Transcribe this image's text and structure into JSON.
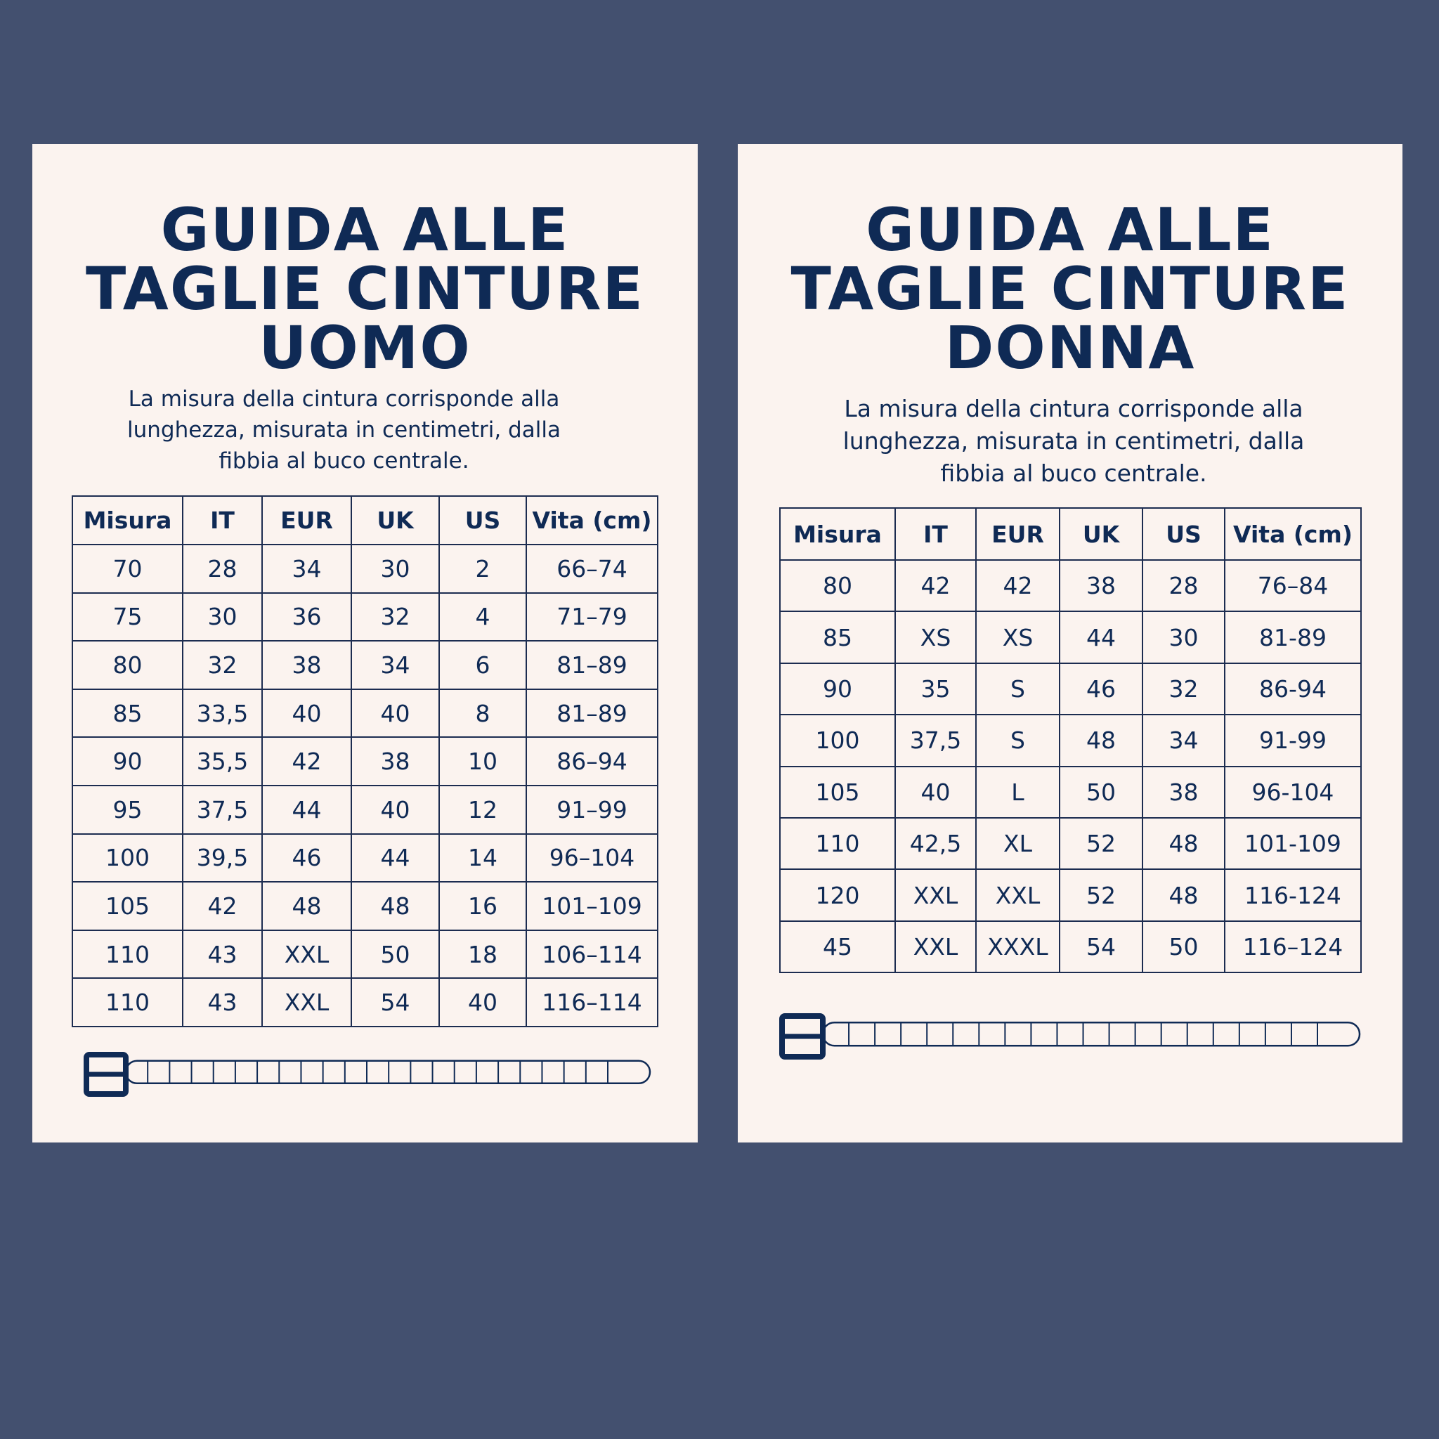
{
  "colors": {
    "background": "#43506F",
    "card": "#FBF3EF",
    "ink": "#0F2A55"
  },
  "men": {
    "title_lines": [
      "GUIDA ALLE",
      "TAGLIE CINTURE",
      "UOMO"
    ],
    "subtitle_lines": [
      "La misura della cintura corrisponde alla",
      "lunghezza, misurata in centimetri, dalla",
      "fibbia al buco centrale."
    ],
    "headers": [
      "Misura",
      "IT",
      "EUR",
      "UK",
      "US",
      "Vita (cm)"
    ],
    "rows": [
      [
        "70",
        "28",
        "34",
        "30",
        "2",
        "66–74"
      ],
      [
        "75",
        "30",
        "36",
        "32",
        "4",
        "71–79"
      ],
      [
        "80",
        "32",
        "38",
        "34",
        "6",
        "81–89"
      ],
      [
        "85",
        "33,5",
        "40",
        "40",
        "8",
        "81–89"
      ],
      [
        "90",
        "35,5",
        "42",
        "38",
        "10",
        "86–94"
      ],
      [
        "95",
        "37,5",
        "44",
        "40",
        "12",
        "91–99"
      ],
      [
        "100",
        "39,5",
        "46",
        "44",
        "14",
        "96–104"
      ],
      [
        "105",
        "42",
        "48",
        "48",
        "16",
        "101–109"
      ],
      [
        "110",
        "43",
        "XXL",
        "50",
        "18",
        "106–114"
      ],
      [
        "110",
        "43",
        "XXL",
        "54",
        "40",
        "116–114"
      ]
    ],
    "belt_icon": "belt-icon"
  },
  "women": {
    "title_lines": [
      "GUIDA ALLE",
      "TAGLIE CINTURE",
      "DONNA"
    ],
    "subtitle_lines": [
      "La misura della cintura corrisponde alla",
      "lunghezza, misurata in centimetri, dalla",
      "fibbia al buco centrale."
    ],
    "headers": [
      "Misura",
      "IT",
      "EUR",
      "UK",
      "US",
      "Vita (cm)"
    ],
    "rows": [
      [
        "80",
        "42",
        "42",
        "38",
        "28",
        "76–84"
      ],
      [
        "85",
        "XS",
        "XS",
        "44",
        "30",
        "81-89"
      ],
      [
        "90",
        "35",
        "S",
        "46",
        "32",
        "86-94"
      ],
      [
        "100",
        "37,5",
        "S",
        "48",
        "34",
        "91-99"
      ],
      [
        "105",
        "40",
        "L",
        "50",
        "38",
        "96-104"
      ],
      [
        "110",
        "42,5",
        "XL",
        "52",
        "48",
        "101-109"
      ],
      [
        "120",
        "XXL",
        "XXL",
        "52",
        "48",
        "116-124"
      ],
      [
        "45",
        "XXL",
        "XXXL",
        "54",
        "50",
        "116–124"
      ]
    ],
    "belt_icon": "belt-icon"
  }
}
